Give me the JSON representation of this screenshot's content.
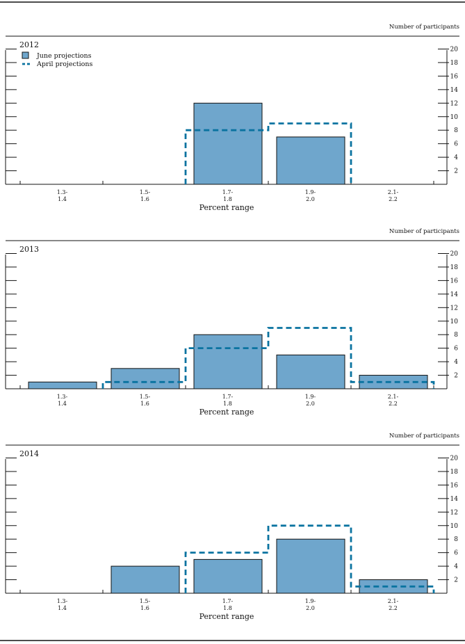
{
  "legend": {
    "june_label": "June projections",
    "april_label": "April projections"
  },
  "colors": {
    "bar_fill": "#6fa6cc",
    "bar_stroke": "#111111",
    "april_line": "#0a73a0",
    "axis": "#111111"
  },
  "chart_data": [
    {
      "type": "bar",
      "title": "2012",
      "xlabel": "Percent range",
      "ylabel": "Number of participants",
      "ylim": [
        0,
        20
      ],
      "yticks": [
        2,
        4,
        6,
        8,
        10,
        12,
        14,
        16,
        18,
        20
      ],
      "categories": [
        "1.3-\n1.4",
        "1.5-\n1.6",
        "1.7-\n1.8",
        "1.9-\n2.0",
        "2.1-\n2.2"
      ],
      "series": [
        {
          "name": "June projections",
          "kind": "bar",
          "values": [
            0,
            0,
            12,
            7,
            0
          ]
        },
        {
          "name": "April projections",
          "kind": "step-dashed",
          "values": [
            0,
            0,
            8,
            9,
            0
          ]
        }
      ]
    },
    {
      "type": "bar",
      "title": "2013",
      "xlabel": "Percent range",
      "ylabel": "Number of participants",
      "ylim": [
        0,
        20
      ],
      "yticks": [
        2,
        4,
        6,
        8,
        10,
        12,
        14,
        16,
        18,
        20
      ],
      "categories": [
        "1.3-\n1.4",
        "1.5-\n1.6",
        "1.7-\n1.8",
        "1.9-\n2.0",
        "2.1-\n2.2"
      ],
      "series": [
        {
          "name": "June projections",
          "kind": "bar",
          "values": [
            1,
            3,
            8,
            5,
            2
          ]
        },
        {
          "name": "April projections",
          "kind": "step-dashed",
          "values": [
            0,
            1,
            6,
            9,
            1
          ]
        }
      ]
    },
    {
      "type": "bar",
      "title": "2014",
      "xlabel": "Percent range",
      "ylabel": "Number of participants",
      "ylim": [
        0,
        20
      ],
      "yticks": [
        2,
        4,
        6,
        8,
        10,
        12,
        14,
        16,
        18,
        20
      ],
      "categories": [
        "1.3-\n1.4",
        "1.5-\n1.6",
        "1.7-\n1.8",
        "1.9-\n2.0",
        "2.1-\n2.2"
      ],
      "series": [
        {
          "name": "June projections",
          "kind": "bar",
          "values": [
            0,
            4,
            5,
            8,
            2
          ]
        },
        {
          "name": "April projections",
          "kind": "step-dashed",
          "values": [
            0,
            0,
            6,
            10,
            1
          ]
        }
      ]
    }
  ]
}
